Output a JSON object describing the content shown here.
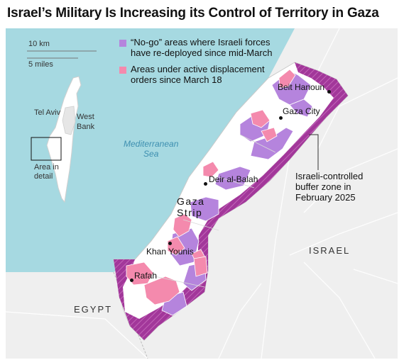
{
  "title": "Israel’s Military Is Increasing its Control of Territory in Gaza",
  "scale": {
    "km": "10 km",
    "miles": "5 miles"
  },
  "legend": [
    {
      "label_line1": "“No-go” areas where Israeli forces",
      "label_line2": "have re-deployed since mid-March",
      "color": "#b584dd"
    },
    {
      "label_line1": "Areas under active displacement",
      "label_line2": "orders since March 18",
      "color": "#f48aad"
    }
  ],
  "buffer_zone_color": "#a2379a",
  "sea_color": "#a6d9e1",
  "land_color": "#f2f2f2",
  "inset": {
    "tel_aviv": "Tel Aviv",
    "west_bank_line1": "West",
    "west_bank_line2": "Bank",
    "area_line1": "Area in",
    "area_line2": "detail"
  },
  "places": {
    "beit_hanoun": "Beit Hanoun",
    "gaza_city": "Gaza City",
    "deir_al_balah": "Deir al-Balah",
    "khan_younis": "Khan Younis",
    "rafah": "Rafah"
  },
  "region": {
    "strip_line1": "Gaza",
    "strip_line2": "Strip",
    "israel": "ISRAEL",
    "egypt": "EGYPT",
    "sea_line1": "Mediterranean",
    "sea_line2": "Sea"
  },
  "annotation": {
    "line1": "Israeli-controlled",
    "line2": "buffer zone in",
    "line3": "February 2025"
  }
}
